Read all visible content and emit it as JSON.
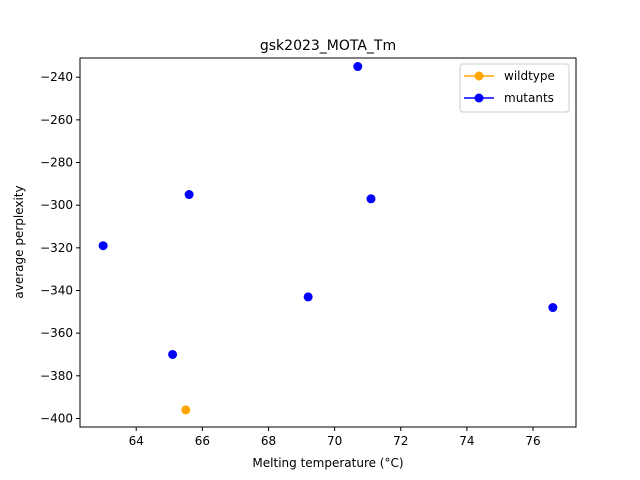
{
  "chart_data": {
    "type": "scatter",
    "title": "gsk2023_MOTA_Tm",
    "xlabel": "Melting temperature (°C)",
    "ylabel": "average perplexity",
    "xlim": [
      62.3,
      77.3
    ],
    "ylim": [
      -404,
      -231
    ],
    "xticks": [
      64,
      66,
      68,
      70,
      72,
      74,
      76
    ],
    "yticks": [
      -240,
      -260,
      -280,
      -300,
      -320,
      -340,
      -360,
      -380,
      -400
    ],
    "xtick_labels": [
      "64",
      "66",
      "68",
      "70",
      "72",
      "74",
      "76"
    ],
    "ytick_labels": [
      "−240",
      "−260",
      "−280",
      "−300",
      "−320",
      "−340",
      "−360",
      "−380",
      "−400"
    ],
    "grid": false,
    "legend_position": "top-right",
    "series": [
      {
        "name": "wildtype",
        "color": "#ffa500",
        "points": [
          {
            "x": 65.5,
            "y": -396
          }
        ]
      },
      {
        "name": "mutants",
        "color": "#0000ff",
        "points": [
          {
            "x": 70.7,
            "y": -235
          },
          {
            "x": 65.6,
            "y": -295
          },
          {
            "x": 71.1,
            "y": -297
          },
          {
            "x": 63.0,
            "y": -319
          },
          {
            "x": 69.2,
            "y": -343
          },
          {
            "x": 76.6,
            "y": -348
          },
          {
            "x": 65.1,
            "y": -370
          }
        ]
      }
    ]
  }
}
